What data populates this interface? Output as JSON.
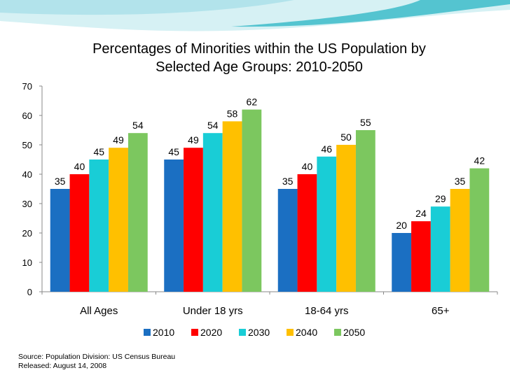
{
  "header": {
    "title_line1": "Percentages of Minorities within the US Population by",
    "title_line2": "Selected Age Groups: 2010-2050"
  },
  "footer": {
    "source": "Source: Population Division: US Census Bureau",
    "released": "Released: August 14, 2008"
  },
  "colors": {
    "header_teal": "#3dbcc9",
    "header_light": "#bfe9ee"
  },
  "chart_data": {
    "type": "bar",
    "title": "Percentages of Minorities within the US Population by Selected Age Groups: 2010-2050",
    "categories": [
      "All Ages",
      "Under 18 yrs",
      "18-64 yrs",
      "65+"
    ],
    "series": [
      {
        "name": "2010",
        "color": "#1b6fc2",
        "values": [
          35,
          45,
          35,
          20
        ]
      },
      {
        "name": "2020",
        "color": "#ff0000",
        "values": [
          40,
          49,
          40,
          24
        ]
      },
      {
        "name": "2030",
        "color": "#19cdd6",
        "values": [
          45,
          54,
          46,
          29
        ]
      },
      {
        "name": "2040",
        "color": "#ffc000",
        "values": [
          49,
          58,
          50,
          35
        ]
      },
      {
        "name": "2050",
        "color": "#7cc75f",
        "values": [
          54,
          62,
          55,
          42
        ]
      }
    ],
    "ylim": [
      0,
      70
    ],
    "yticks": [
      0,
      10,
      20,
      30,
      40,
      50,
      60,
      70
    ],
    "grid": false,
    "legend": "bottom",
    "data_labels": true
  }
}
